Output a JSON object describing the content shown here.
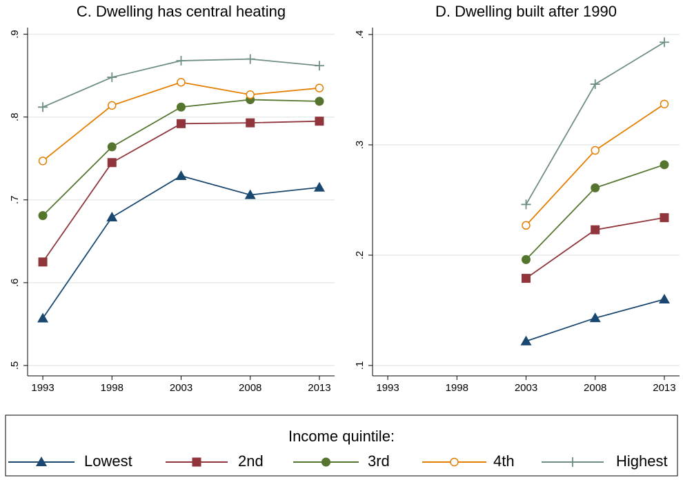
{
  "chart_data": [
    {
      "type": "line",
      "title": "C. Dwelling has central heating",
      "x": [
        1993,
        1998,
        2003,
        2008,
        2013
      ],
      "xlim": [
        1991.9,
        2014.1
      ],
      "xticks": [
        1993,
        1998,
        2003,
        2008,
        2013
      ],
      "ylim": [
        0.4875,
        0.908
      ],
      "yticks": [
        {
          "value": 0.5,
          "label": ".5"
        },
        {
          "value": 0.6,
          "label": ".6"
        },
        {
          "value": 0.7,
          "label": ".7"
        },
        {
          "value": 0.8,
          "label": ".8"
        },
        {
          "value": 0.9,
          "label": ".9"
        }
      ],
      "grid": true,
      "series": [
        {
          "name": "Lowest",
          "color": "#1a476f",
          "marker": "triangle",
          "values": [
            0.557,
            0.679,
            0.729,
            0.706,
            0.715
          ]
        },
        {
          "name": "2nd",
          "color": "#90353b",
          "marker": "square",
          "values": [
            0.625,
            0.745,
            0.792,
            0.793,
            0.795
          ]
        },
        {
          "name": "3rd",
          "color": "#55752f",
          "marker": "circle",
          "values": [
            0.681,
            0.764,
            0.812,
            0.821,
            0.819
          ]
        },
        {
          "name": "4th",
          "color": "#e37e00",
          "marker": "hollow-circle",
          "values": [
            0.747,
            0.814,
            0.842,
            0.827,
            0.835
          ]
        },
        {
          "name": "Highest",
          "color": "#6e8e84",
          "marker": "plus",
          "values": [
            0.812,
            0.848,
            0.868,
            0.87,
            0.862
          ]
        }
      ]
    },
    {
      "type": "line",
      "title": "D. Dwelling built after 1990",
      "x": [
        1993,
        1998,
        2003,
        2008,
        2013
      ],
      "xlim": [
        1991.9,
        2014.1
      ],
      "xticks": [
        1993,
        1998,
        2003,
        2008,
        2013
      ],
      "ylim": [
        0.0906,
        0.4063
      ],
      "yticks": [
        {
          "value": 0.1,
          "label": ".1"
        },
        {
          "value": 0.2,
          "label": ".2"
        },
        {
          "value": 0.3,
          "label": ".3"
        },
        {
          "value": 0.4,
          "label": ".4"
        }
      ],
      "grid": true,
      "series": [
        {
          "name": "Lowest",
          "color": "#1a476f",
          "marker": "triangle",
          "values": [
            null,
            null,
            0.122,
            0.143,
            0.16
          ]
        },
        {
          "name": "2nd",
          "color": "#90353b",
          "marker": "square",
          "values": [
            null,
            null,
            0.179,
            0.223,
            0.234
          ]
        },
        {
          "name": "3rd",
          "color": "#55752f",
          "marker": "circle",
          "values": [
            null,
            null,
            0.196,
            0.261,
            0.282
          ]
        },
        {
          "name": "4th",
          "color": "#e37e00",
          "marker": "hollow-circle",
          "values": [
            null,
            null,
            0.227,
            0.295,
            0.337
          ]
        },
        {
          "name": "Highest",
          "color": "#6e8e84",
          "marker": "plus",
          "values": [
            null,
            null,
            0.246,
            0.355,
            0.393
          ]
        }
      ]
    }
  ],
  "legend": {
    "title": "Income quintile:"
  }
}
